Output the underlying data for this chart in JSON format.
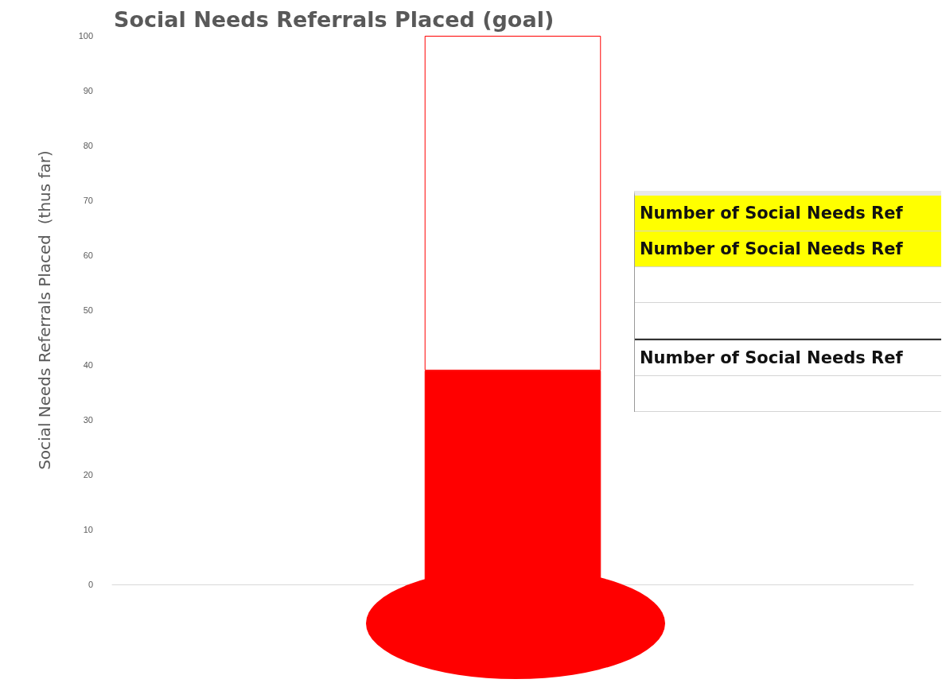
{
  "chart_data": {
    "type": "bar",
    "title": "Social Needs Referrals Placed (goal)",
    "ylabel": "Social Needs Referrals Placed  (thus far)",
    "categories": [
      null
    ],
    "stacked": true,
    "series": [
      {
        "values": [
          39
        ],
        "color": "#ff0000"
      },
      {
        "values": [
          61
        ],
        "color": "#ffffff"
      }
    ],
    "ylim": [
      0,
      100
    ],
    "yticks": [
      0,
      10,
      20,
      30,
      40,
      50,
      60,
      70,
      80,
      90,
      100
    ],
    "grid": false,
    "annotations": [
      "Number of Social Needs Ref",
      "Number of Social Needs Ref",
      "Number of Social Needs Ref"
    ]
  }
}
